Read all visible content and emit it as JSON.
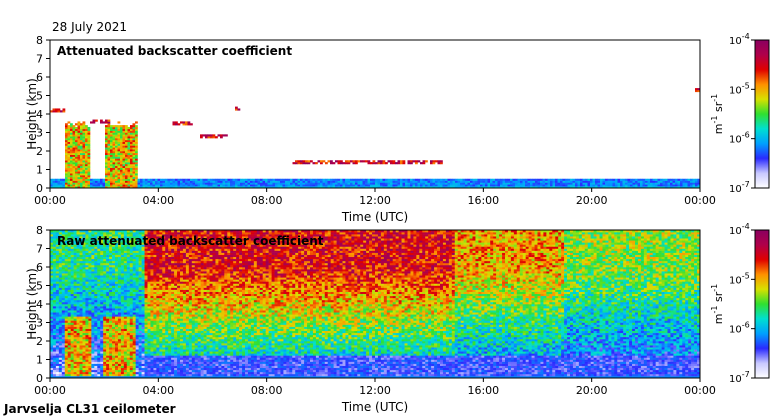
{
  "date_label": "28 July 2021",
  "instrument_label": "Jarvselja CL31 ceilometer",
  "colors": {
    "scale_stops": [
      "#ffffff",
      "#c8c8ff",
      "#2a2aff",
      "#00a0ff",
      "#00e0d0",
      "#30e030",
      "#d8e000",
      "#ff9000",
      "#e00000",
      "#b0004a",
      "#8a0060"
    ]
  },
  "chart_data": [
    {
      "type": "heatmap",
      "title": "Attenuated backscatter coefficient",
      "xlabel": "Time (UTC)",
      "ylabel": "Height (km)",
      "x_ticks": [
        "00:00",
        "04:00",
        "08:00",
        "12:00",
        "16:00",
        "20:00",
        "00:00"
      ],
      "x_range_hours": [
        0,
        24
      ],
      "y_ticks": [
        "0",
        "1",
        "2",
        "3",
        "4",
        "5",
        "6",
        "7",
        "8"
      ],
      "ylim": [
        0,
        8
      ],
      "colorbar": {
        "label": "m-1 sr-1",
        "label_parts": [
          "m",
          "-1",
          "sr",
          "-1"
        ],
        "ticks": [
          {
            "base": "10",
            "exp": "-4"
          },
          {
            "base": "10",
            "exp": "-5"
          },
          {
            "base": "10",
            "exp": "-6"
          },
          {
            "base": "10",
            "exp": "-7"
          }
        ],
        "range": [
          1e-07,
          0.0001
        ],
        "scale": "log"
      },
      "features": {
        "boundary_layer_top_km": 0.5,
        "rain_columns_hours": [
          [
            0.6,
            1.5
          ],
          [
            2.0,
            3.2
          ]
        ],
        "cloud_layers": [
          {
            "t_start": 0.0,
            "t_end": 0.6,
            "height_km": 4.2
          },
          {
            "t_start": 1.5,
            "t_end": 2.2,
            "height_km": 3.6
          },
          {
            "t_start": 4.5,
            "t_end": 5.3,
            "height_km": 3.5
          },
          {
            "t_start": 5.5,
            "t_end": 6.6,
            "height_km": 2.8
          },
          {
            "t_start": 6.8,
            "t_end": 7.0,
            "height_km": 4.3
          },
          {
            "t_start": 9.0,
            "t_end": 14.5,
            "height_km": 1.4
          },
          {
            "t_start": 23.8,
            "t_end": 24.0,
            "height_km": 5.3
          }
        ]
      }
    },
    {
      "type": "heatmap",
      "title": "Raw attenuated backscatter coefficient",
      "xlabel": "Time (UTC)",
      "ylabel": "Height (km)",
      "x_ticks": [
        "00:00",
        "04:00",
        "08:00",
        "12:00",
        "16:00",
        "20:00",
        "00:00"
      ],
      "x_range_hours": [
        0,
        24
      ],
      "y_ticks": [
        "0",
        "1",
        "2",
        "3",
        "4",
        "5",
        "6",
        "7",
        "8"
      ],
      "ylim": [
        0,
        8
      ],
      "colorbar": {
        "label": "m-1 sr-1",
        "label_parts": [
          "m",
          "-1",
          "sr",
          "-1"
        ],
        "ticks": [
          {
            "base": "10",
            "exp": "-4"
          },
          {
            "base": "10",
            "exp": "-5"
          },
          {
            "base": "10",
            "exp": "-6"
          },
          {
            "base": "10",
            "exp": "-7"
          }
        ],
        "range": [
          1e-07,
          0.0001
        ],
        "scale": "log"
      }
    }
  ]
}
